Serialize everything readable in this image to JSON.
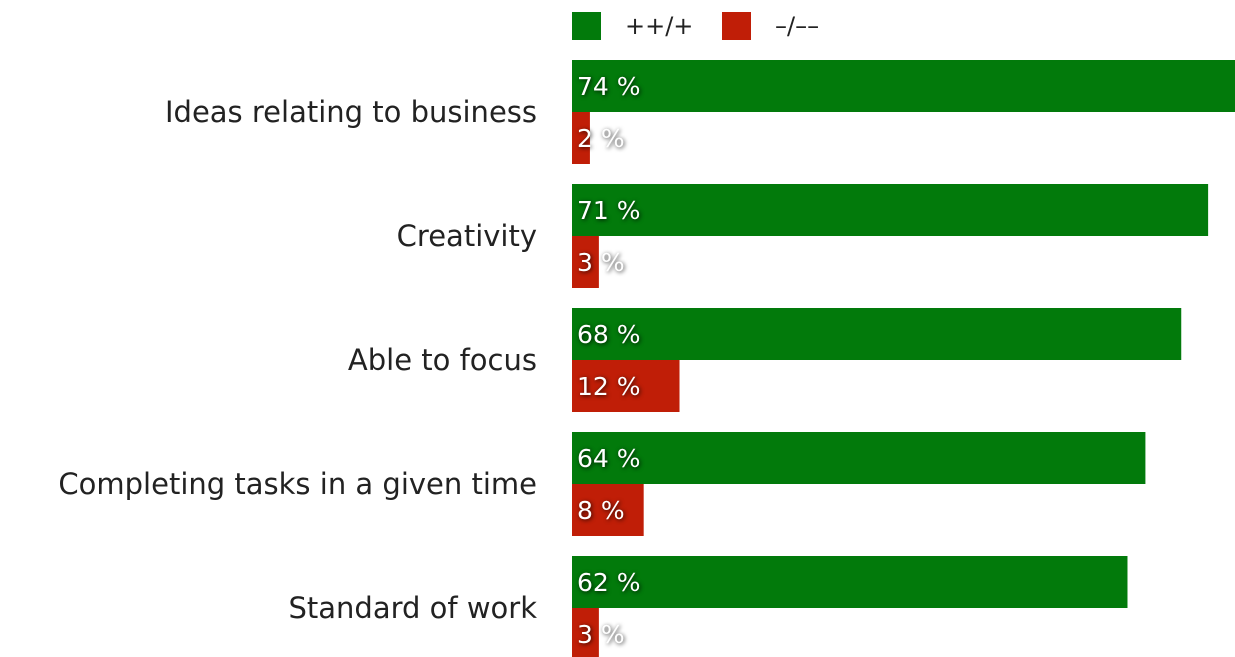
{
  "chart_data": {
    "type": "hbar",
    "categories": [
      "Ideas relating to business",
      "Creativity",
      "Able to focus",
      "Completing tasks in a given time",
      "Standard of work"
    ],
    "series": [
      {
        "name": "++/+",
        "color": "#027a0b",
        "values": [
          74,
          71,
          68,
          64,
          62
        ],
        "value_labels": [
          "74 %",
          "71 %",
          "68 %",
          "64 %",
          "62 %"
        ]
      },
      {
        "name": "–/––",
        "color": "#c01e07",
        "values": [
          2,
          3,
          12,
          8,
          3
        ],
        "value_labels": [
          "2 %",
          "3 %",
          "12 %",
          "8 %",
          "3 %"
        ]
      }
    ],
    "legend": "top"
  }
}
